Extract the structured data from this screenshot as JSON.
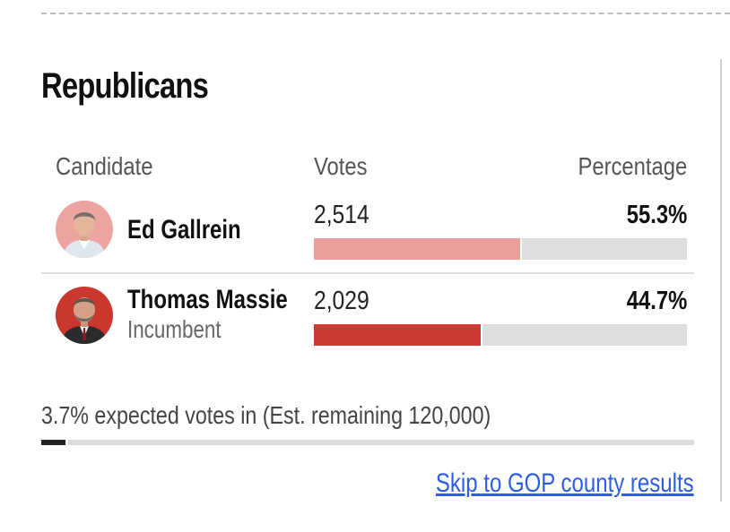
{
  "party_heading": "Republicans",
  "table": {
    "headers": {
      "candidate": "Candidate",
      "votes": "Votes",
      "percentage": "Percentage"
    },
    "rows": [
      {
        "name": "Ed Gallrein",
        "status": "",
        "votes": "2,514",
        "percentage": "55.3%",
        "share": 55.3,
        "bar_color": "#eb9e9a",
        "avatar_icon": "candidate-photo"
      },
      {
        "name": "Thomas Massie",
        "status": "Incumbent",
        "votes": "2,029",
        "percentage": "44.7%",
        "share": 44.7,
        "bar_color": "#cd3a33",
        "avatar_icon": "candidate-photo"
      }
    ]
  },
  "expected": {
    "text": "3.7% expected votes in (Est. remaining 120,000)",
    "share": 3.7
  },
  "links": {
    "skip": "Skip to GOP county results"
  },
  "colors": {
    "link": "#2f5ce6",
    "track": "#dedede"
  }
}
